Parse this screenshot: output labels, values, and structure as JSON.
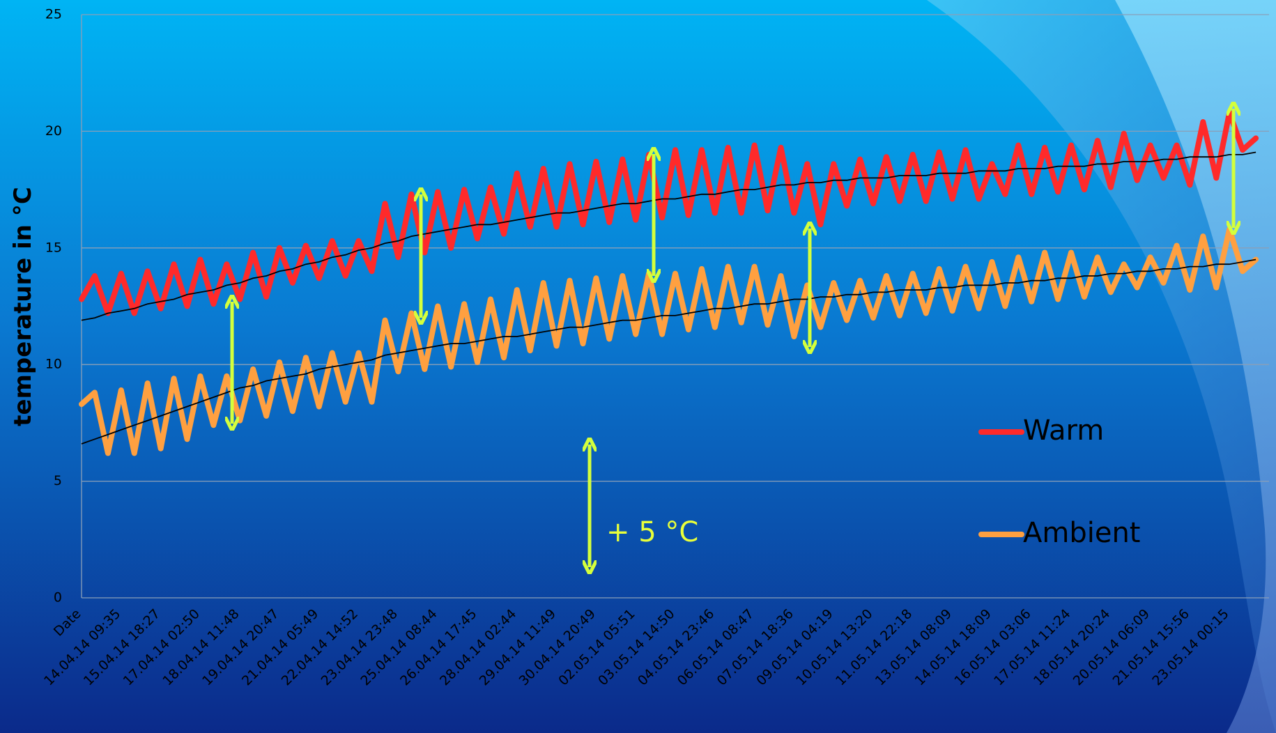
{
  "chart_data": {
    "type": "line",
    "y_label": "temperature in °C",
    "annotation": "+ 5 °C",
    "categories": [
      "Date",
      null,
      null,
      "14.04.14 09:35",
      null,
      null,
      "15.04.14 18:27",
      null,
      null,
      "17.04.14 02:50",
      null,
      null,
      "18.04.14 11:48",
      null,
      null,
      "19.04.14 20:47",
      null,
      null,
      "21.04.14 05:49",
      null,
      null,
      "22.04.14 14:52",
      null,
      null,
      "23.04.14 23:48",
      null,
      null,
      "25.04.14 08:44",
      null,
      null,
      "26.04.14 17:45",
      null,
      null,
      "28.04.14 02:44",
      null,
      null,
      "29.04.14 11:49",
      null,
      null,
      "30.04.14 20:49",
      null,
      null,
      "02.05.14 05:51",
      null,
      null,
      "03.05.14 14:50",
      null,
      null,
      "04.05.14 23:46",
      null,
      null,
      "06.05.14 08:47",
      null,
      null,
      "07.05.14 18:36",
      null,
      null,
      "09.05.14 04:19",
      null,
      null,
      "10.05.14 13:20",
      null,
      null,
      "11.05.14 22:18",
      null,
      null,
      "13.05.14 08:09",
      null,
      null,
      "14.05.14 18:09",
      null,
      null,
      "16.05.14 03:06",
      null,
      null,
      "17.05.14 11:24",
      null,
      null,
      "18.05.14 20:24",
      null,
      null,
      "20.05.14 06:09",
      null,
      null,
      "21.05.14 15:56",
      null,
      null,
      "23.05.14 00:15",
      null,
      null
    ],
    "series": [
      {
        "name": "Warm",
        "color": "#ff2a2a",
        "trend_color": "#000000",
        "values": [
          12.8,
          13.8,
          12.2,
          13.9,
          12.2,
          14.0,
          12.4,
          14.3,
          12.5,
          14.5,
          12.6,
          14.3,
          12.8,
          14.8,
          12.9,
          15.0,
          13.5,
          15.1,
          13.7,
          15.3,
          13.8,
          15.3,
          14.0,
          16.9,
          14.6,
          17.3,
          14.8,
          17.4,
          15.0,
          17.5,
          15.4,
          17.6,
          15.6,
          18.2,
          15.9,
          18.4,
          15.9,
          18.6,
          16.0,
          18.7,
          16.1,
          18.8,
          16.2,
          19.0,
          16.3,
          19.2,
          16.4,
          19.2,
          16.5,
          19.3,
          16.5,
          19.4,
          16.6,
          19.3,
          16.5,
          18.6,
          16.0,
          18.6,
          16.8,
          18.8,
          16.9,
          18.9,
          17.0,
          19.0,
          17.0,
          19.1,
          17.1,
          19.2,
          17.1,
          18.6,
          17.3,
          19.4,
          17.3,
          19.3,
          17.4,
          19.4,
          17.5,
          19.6,
          17.6,
          19.9,
          17.9,
          19.4,
          18.0,
          19.4,
          17.7,
          20.4,
          18.0,
          20.8,
          19.2,
          19.7
        ],
        "trend": [
          11.9,
          12.0,
          12.2,
          12.3,
          12.4,
          12.6,
          12.7,
          12.8,
          13.0,
          13.1,
          13.2,
          13.4,
          13.5,
          13.7,
          13.8,
          14.0,
          14.1,
          14.3,
          14.4,
          14.6,
          14.7,
          14.9,
          15.0,
          15.2,
          15.3,
          15.5,
          15.6,
          15.7,
          15.8,
          15.9,
          16.0,
          16.0,
          16.1,
          16.2,
          16.3,
          16.4,
          16.5,
          16.5,
          16.6,
          16.7,
          16.8,
          16.9,
          16.9,
          17.0,
          17.1,
          17.1,
          17.2,
          17.3,
          17.3,
          17.4,
          17.5,
          17.5,
          17.6,
          17.7,
          17.7,
          17.8,
          17.8,
          17.9,
          17.9,
          18.0,
          18.0,
          18.0,
          18.1,
          18.1,
          18.1,
          18.2,
          18.2,
          18.2,
          18.3,
          18.3,
          18.3,
          18.4,
          18.4,
          18.4,
          18.5,
          18.5,
          18.5,
          18.6,
          18.6,
          18.7,
          18.7,
          18.7,
          18.8,
          18.8,
          18.9,
          18.9,
          18.9,
          19.0,
          19.0,
          19.1
        ]
      },
      {
        "name": "Ambient",
        "color": "#ffa040",
        "trend_color": "#000000",
        "values": [
          8.3,
          8.8,
          6.2,
          8.9,
          6.2,
          9.2,
          6.4,
          9.4,
          6.8,
          9.5,
          7.4,
          9.5,
          7.6,
          9.8,
          7.8,
          10.1,
          8.0,
          10.3,
          8.2,
          10.5,
          8.4,
          10.5,
          8.4,
          11.9,
          9.7,
          12.2,
          9.8,
          12.5,
          9.9,
          12.6,
          10.1,
          12.8,
          10.3,
          13.2,
          10.6,
          13.5,
          10.8,
          13.6,
          10.9,
          13.7,
          11.1,
          13.8,
          11.3,
          13.9,
          11.3,
          13.9,
          11.5,
          14.1,
          11.6,
          14.2,
          11.8,
          14.2,
          11.7,
          13.8,
          11.2,
          13.4,
          11.6,
          13.5,
          11.9,
          13.6,
          12.0,
          13.8,
          12.1,
          13.9,
          12.2,
          14.1,
          12.3,
          14.2,
          12.4,
          14.4,
          12.5,
          14.6,
          12.7,
          14.8,
          12.8,
          14.8,
          12.9,
          14.6,
          13.1,
          14.3,
          13.3,
          14.6,
          13.5,
          15.1,
          13.2,
          15.5,
          13.3,
          15.8,
          14.0,
          14.5
        ],
        "trend": [
          6.6,
          6.8,
          7.0,
          7.2,
          7.4,
          7.6,
          7.8,
          8.0,
          8.2,
          8.4,
          8.6,
          8.8,
          9.0,
          9.1,
          9.3,
          9.4,
          9.5,
          9.6,
          9.8,
          9.9,
          10.0,
          10.1,
          10.2,
          10.4,
          10.5,
          10.6,
          10.7,
          10.8,
          10.9,
          10.9,
          11.0,
          11.1,
          11.2,
          11.2,
          11.3,
          11.4,
          11.5,
          11.6,
          11.6,
          11.7,
          11.8,
          11.9,
          11.9,
          12.0,
          12.1,
          12.1,
          12.2,
          12.3,
          12.4,
          12.4,
          12.5,
          12.6,
          12.6,
          12.7,
          12.8,
          12.8,
          12.9,
          12.9,
          13.0,
          13.0,
          13.1,
          13.1,
          13.2,
          13.2,
          13.2,
          13.3,
          13.3,
          13.4,
          13.4,
          13.4,
          13.5,
          13.5,
          13.6,
          13.6,
          13.7,
          13.7,
          13.8,
          13.8,
          13.9,
          13.9,
          14.0,
          14.0,
          14.1,
          14.1,
          14.2,
          14.2,
          14.3,
          14.3,
          14.4,
          14.5
        ]
      }
    ],
    "ylim": [
      0,
      25
    ],
    "yticks": [
      0,
      5,
      10,
      15,
      20,
      25
    ],
    "grid": true,
    "grid_color": "#8a9fb8",
    "legend": "right",
    "annotation_color": "#e8ff3a"
  }
}
